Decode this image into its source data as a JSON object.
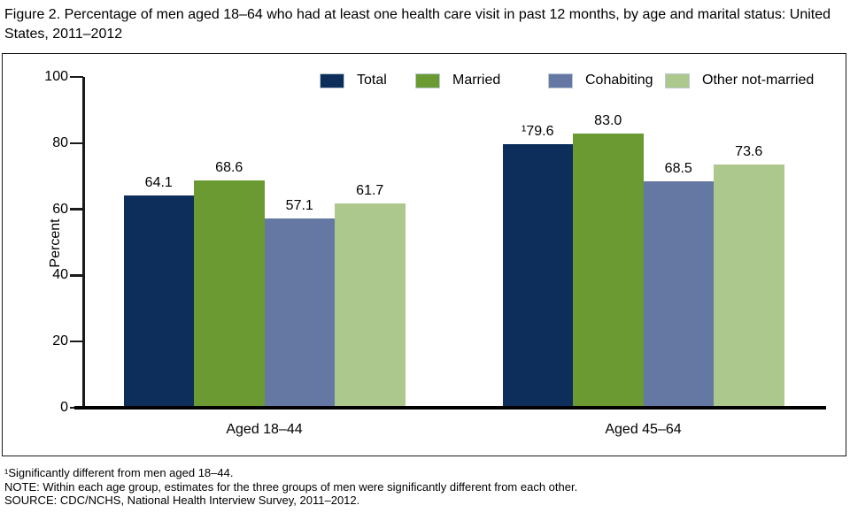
{
  "title": "Figure 2. Percentage of men aged 18–64 who had at least one health care visit in past 12 months, by age and marital status: United States, 2011–2012",
  "chart_data": {
    "type": "bar",
    "title": "Figure 2. Percentage of men aged 18–64 who had at least one health care visit in past 12 months, by age and marital status: United States, 2011–2012",
    "xlabel": "",
    "ylabel": "Percent",
    "ylim": [
      0,
      100
    ],
    "yticks": [
      0,
      20,
      40,
      60,
      80,
      100
    ],
    "grid": false,
    "legend_position": "top",
    "categories": [
      "Aged 18–44",
      "Aged 45–64"
    ],
    "series": [
      {
        "name": "Total",
        "color": "#0d2e5a",
        "values": [
          64.1,
          79.6
        ],
        "value_labels": [
          "64.1",
          "¹79.6"
        ]
      },
      {
        "name": "Married",
        "color": "#6a9a31",
        "values": [
          68.6,
          83.0
        ],
        "value_labels": [
          "68.6",
          "83.0"
        ]
      },
      {
        "name": "Cohabiting",
        "color": "#6478a3",
        "values": [
          57.1,
          68.5
        ],
        "value_labels": [
          "57.1",
          "68.5"
        ]
      },
      {
        "name": "Other not-married",
        "color": "#adc88c",
        "values": [
          61.7,
          73.6
        ],
        "value_labels": [
          "61.7",
          "73.6"
        ]
      }
    ]
  },
  "footnotes": [
    "¹Significantly different from men aged 18–44.",
    "NOTE: Within each age group, estimates for the three groups of men were significantly different from each other.",
    "SOURCE: CDC/NCHS, National Health Interview Survey, 2011–2012."
  ]
}
